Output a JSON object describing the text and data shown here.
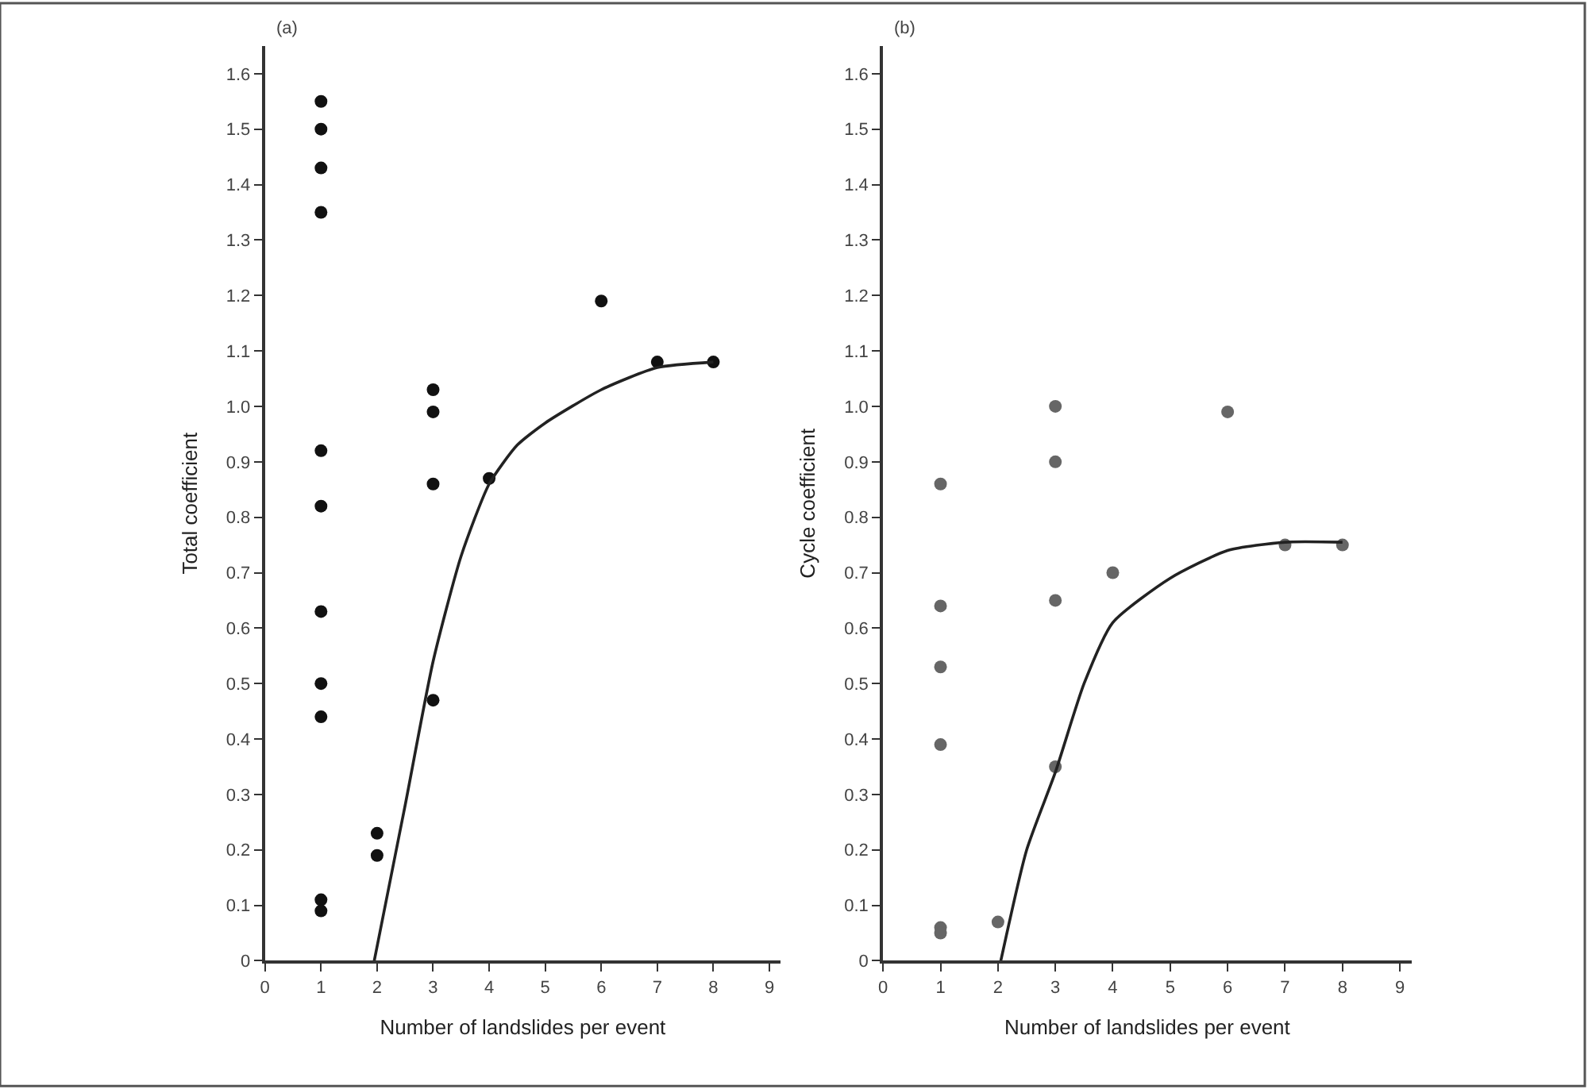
{
  "chart_data": [
    {
      "type": "scatter",
      "xlabel": "Number of landslides per event",
      "ylabel": "Total coefficient",
      "annotations": [
        "(a)"
      ],
      "xlim": [
        0,
        9.2
      ],
      "ylim": [
        0,
        1.65
      ],
      "xticks": [
        0,
        1,
        2,
        3,
        4,
        5,
        6,
        7,
        8,
        9
      ],
      "yticks": [
        0,
        0.1,
        0.2,
        0.3,
        0.4,
        0.5,
        0.6,
        0.7,
        0.8,
        0.9,
        {
          "value": 1,
          "label": "1.0"
        },
        1.1,
        1.2,
        1.3,
        1.4,
        1.5,
        1.6
      ],
      "marker": "circle",
      "series": [
        {
          "color": "#111111",
          "x": [
            1,
            1,
            1,
            1,
            1,
            1,
            1,
            1,
            1,
            1,
            1,
            2,
            2,
            3,
            3,
            3,
            3,
            4,
            6,
            7,
            8
          ],
          "values": [
            1.55,
            1.5,
            1.43,
            1.35,
            0.92,
            0.82,
            0.63,
            0.5,
            0.44,
            0.11,
            0.09,
            0.23,
            0.19,
            1.03,
            0.99,
            0.86,
            0.47,
            0.87,
            1.19,
            1.08,
            1.08
          ]
        },
        {
          "type": "line",
          "color": "#222222",
          "marker": "none",
          "line_style": "solid",
          "x": [
            1.95,
            2.5,
            3,
            3.5,
            4,
            4.5,
            5,
            6,
            7,
            8
          ],
          "values": [
            0,
            0.28,
            0.54,
            0.73,
            0.86,
            0.93,
            0.97,
            1.03,
            1.07,
            1.08
          ]
        }
      ]
    },
    {
      "type": "scatter",
      "xlabel": "Number of landslides per event",
      "ylabel": "Cycle coefficient",
      "annotations": [
        "(b)"
      ],
      "xlim": [
        0,
        9.2
      ],
      "ylim": [
        0,
        1.65
      ],
      "xticks": [
        0,
        1,
        2,
        3,
        4,
        5,
        6,
        7,
        8,
        9
      ],
      "yticks": [
        0,
        0.1,
        0.2,
        0.3,
        0.4,
        0.5,
        0.6,
        0.7,
        0.8,
        0.9,
        {
          "value": 1,
          "label": "1.0"
        },
        1.1,
        1.2,
        1.3,
        1.4,
        1.5,
        1.6
      ],
      "marker": "circle",
      "series": [
        {
          "color": "#666666",
          "x": [
            1,
            1,
            1,
            1,
            1,
            1,
            2,
            3,
            3,
            3,
            3,
            4,
            6,
            7,
            8
          ],
          "values": [
            0.86,
            0.64,
            0.53,
            0.39,
            0.06,
            0.05,
            0.07,
            1.0,
            0.9,
            0.65,
            0.35,
            0.7,
            0.99,
            0.75,
            0.75
          ]
        },
        {
          "type": "line",
          "color": "#222222",
          "marker": "none",
          "line_style": "solid",
          "x": [
            2.05,
            2.5,
            3,
            3.5,
            4,
            5,
            6,
            7,
            8
          ],
          "values": [
            0,
            0.2,
            0.34,
            0.5,
            0.61,
            0.69,
            0.74,
            0.755,
            0.755
          ]
        }
      ]
    }
  ]
}
